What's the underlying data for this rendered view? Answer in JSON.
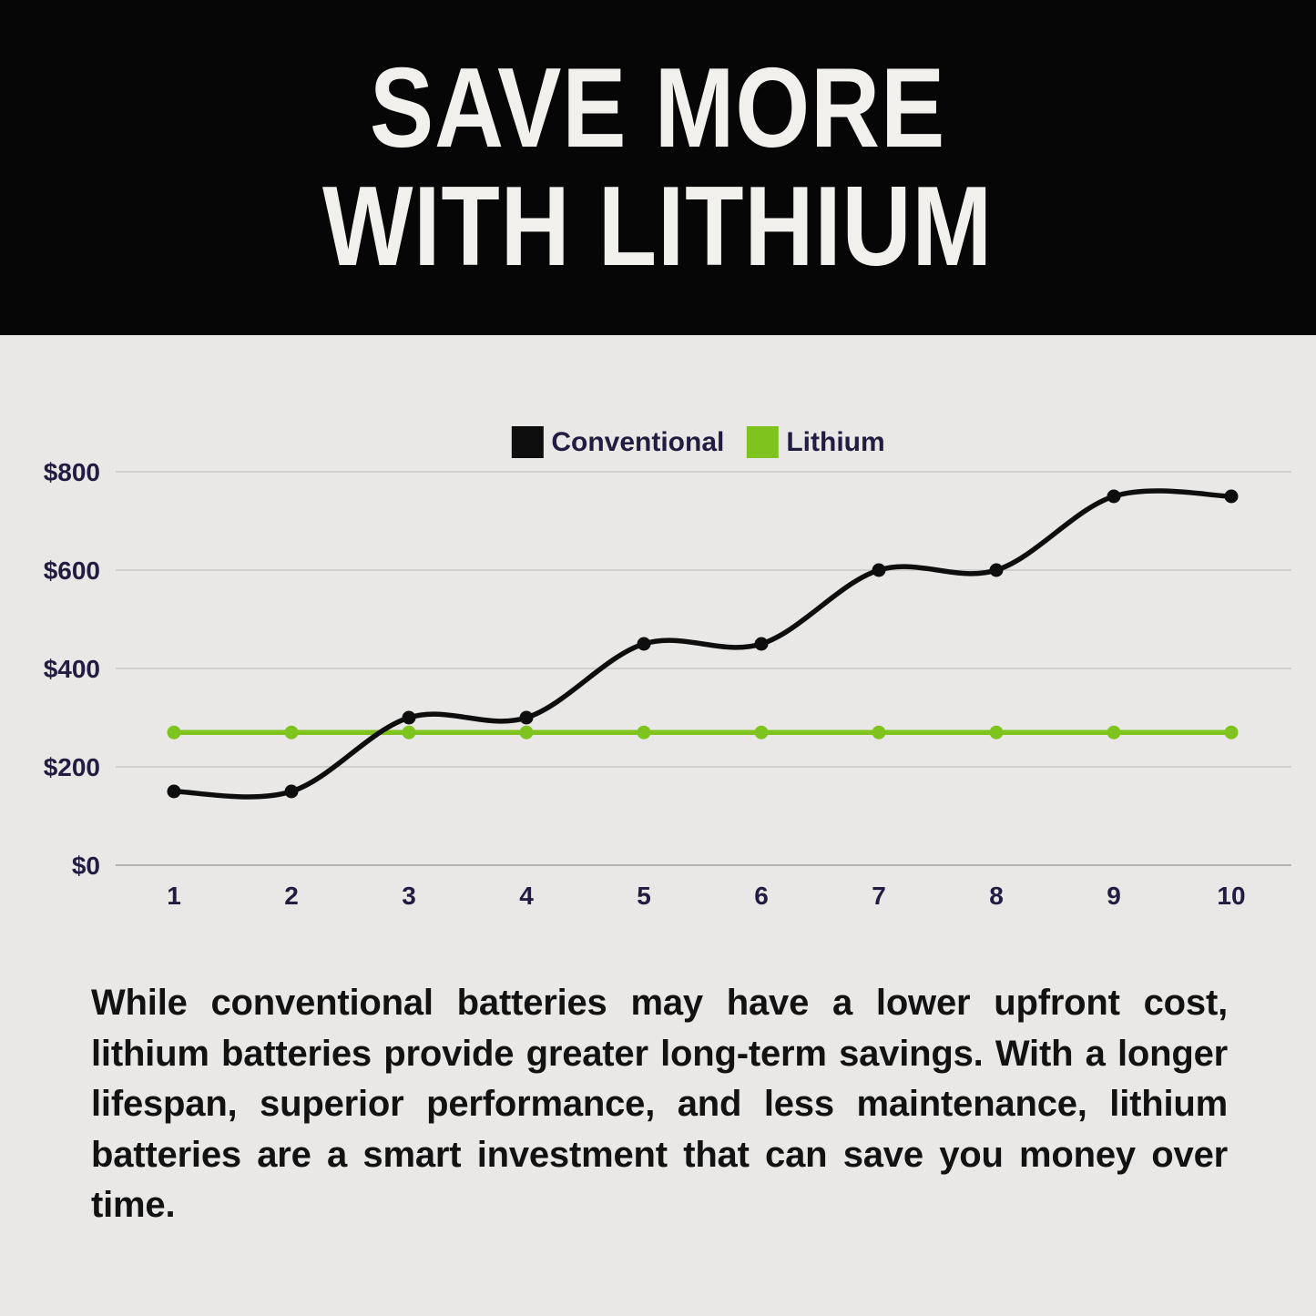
{
  "header": {
    "title_line1": "SAVE MORE",
    "title_line2": "WITH LITHIUM"
  },
  "legend": [
    {
      "label": "Conventional",
      "color": "#0e0e0e"
    },
    {
      "label": "Lithium",
      "color": "#7fc41e"
    }
  ],
  "chart_data": {
    "type": "line",
    "x": [
      1,
      2,
      3,
      4,
      5,
      6,
      7,
      8,
      9,
      10
    ],
    "series": [
      {
        "name": "Conventional",
        "color": "#0e0e0e",
        "values": [
          150,
          150,
          300,
          300,
          450,
          450,
          600,
          600,
          750,
          750
        ]
      },
      {
        "name": "Lithium",
        "color": "#7fc41e",
        "values": [
          270,
          270,
          270,
          270,
          270,
          270,
          270,
          270,
          270,
          270
        ]
      }
    ],
    "xlabel": "",
    "ylabel": "",
    "ylim": [
      0,
      800
    ],
    "ytick_values": [
      0,
      200,
      400,
      600,
      800
    ],
    "ytick_labels": [
      "$0",
      "$200",
      "$400",
      "$600",
      "$800"
    ],
    "grid": true,
    "legend_position": "top-center",
    "curve": "smooth"
  },
  "body": {
    "paragraph": "While conventional batteries may have a lower upfront cost, lithium batteries provide greater long-term savings. With a longer lifespan, superior performance, and less maintenance, lithium batteries are a smart investment that can save you money over time."
  },
  "colors": {
    "background": "#e9e8e6",
    "header_bg": "#060606",
    "title_text": "#f2f0ed",
    "axis_text": "#231c41",
    "gridline": "#d0cfcd",
    "axis_line": "#b3b2b0",
    "paragraph_text": "#121212"
  }
}
